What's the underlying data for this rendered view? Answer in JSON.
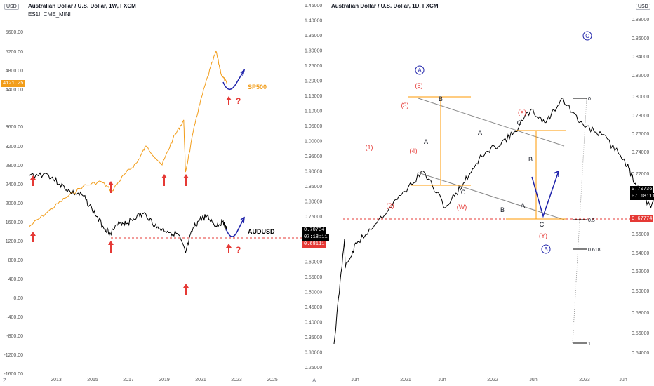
{
  "colors": {
    "price": "#000000",
    "sp500": "#f29d1a",
    "red": "#e53935",
    "blue": "#1e22aa",
    "orange_box": "#ff9800",
    "channel": "#888888",
    "axis_text": "#555555"
  },
  "left_chart": {
    "title": "Australian Dollar / U.S. Dollar, 1W, FXCM",
    "overlay_symbol": "ES1!, CME_MINI",
    "currency": "USD",
    "corner_label": "Z",
    "price_axis": [
      "5600.00",
      "5200.00",
      "4800.00",
      "4400.00",
      "3600.00",
      "3200.00",
      "2800.00",
      "2400.00",
      "2000.00",
      "1600.00",
      "1200.00",
      "800.00",
      "400.00",
      "0.00",
      "-400.00",
      "-800.00",
      "-1200.00",
      "-1600.00"
    ],
    "time_axis": [
      "2013",
      "2015",
      "2017",
      "2019",
      "2021",
      "2023",
      "2025"
    ],
    "sp500_last_value": "4121.25",
    "audusd_last_value": "0.70734",
    "audusd_countdown": "07:18:11",
    "support_value": "0.68111",
    "labels": {
      "sp500": "SP500",
      "audusd": "AUDUSD",
      "question": "?"
    }
  },
  "right_chart": {
    "title": "Australian Dollar / U.S. Dollar, 1D, FXCM",
    "currency": "USD",
    "corner_label": "A",
    "left_axis": [
      "1.45000",
      "1.40000",
      "1.35000",
      "1.30000",
      "1.25000",
      "1.20000",
      "1.15000",
      "1.10000",
      "1.05000",
      "1.00000",
      "0.95000",
      "0.90000",
      "0.85000",
      "0.80000",
      "0.75000",
      "0.70000",
      "0.65000",
      "0.60000",
      "0.55000",
      "0.50000",
      "0.45000",
      "0.40000",
      "0.35000",
      "0.30000",
      "0.25000"
    ],
    "right_axis": [
      "0.88000",
      "0.86000",
      "0.84000",
      "0.82000",
      "0.80000",
      "0.78000",
      "0.76000",
      "0.74000",
      "0.72000",
      "0.70000",
      "0.66000",
      "0.64000",
      "0.62000",
      "0.60000",
      "0.58000",
      "0.56000",
      "0.54000"
    ],
    "time_axis": [
      "Jun",
      "2021",
      "Jun",
      "2022",
      "Jun",
      "2023",
      "Jun"
    ],
    "last_price": "0.70736",
    "countdown": "07:18:11",
    "support_price": "0.67774",
    "fib_levels": [
      "0",
      "0.5",
      "0.618",
      "1"
    ],
    "wave_labels": {
      "A_circle": "A",
      "B_circle": "B",
      "C_circle": "C",
      "w1": "(1)",
      "w2": "(2)",
      "w3": "(3)",
      "w4": "(4)",
      "w5": "(5)",
      "W": "(W)",
      "X": "(X)",
      "Y": "(Y)",
      "a": "A",
      "b": "B",
      "c": "C"
    }
  },
  "chart_data": [
    {
      "type": "line",
      "title": "Australian Dollar / U.S. Dollar, 1W, FXCM",
      "series": [
        {
          "name": "AUDUSD"
        },
        {
          "name": "SP500"
        }
      ],
      "x_ticks": [
        "2013",
        "2015",
        "2017",
        "2019",
        "2021",
        "2023",
        "2025"
      ],
      "audusd_x": [
        2011.5,
        2012.5,
        2013.2,
        2013.8,
        2014.5,
        2015.0,
        2015.6,
        2016.0,
        2016.6,
        2017.0,
        2017.5,
        2018.0,
        2018.6,
        2019.2,
        2019.8,
        2020.2,
        2020.6,
        2021.0,
        2021.4,
        2021.9,
        2022.3,
        2022.5
      ],
      "audusd_y": [
        1.03,
        1.04,
        0.98,
        0.93,
        0.91,
        0.83,
        0.73,
        0.69,
        0.75,
        0.75,
        0.79,
        0.8,
        0.72,
        0.7,
        0.68,
        0.57,
        0.71,
        0.77,
        0.79,
        0.73,
        0.76,
        0.707
      ],
      "sp500_x": [
        2011.5,
        2012.5,
        2013.5,
        2014.5,
        2015.5,
        2016.1,
        2016.8,
        2017.5,
        2018.0,
        2018.9,
        2019.5,
        2020.1,
        2020.2,
        2020.8,
        2021.3,
        2021.9,
        2022.2,
        2022.5
      ],
      "sp500_y": [
        1100,
        1400,
        1700,
        1950,
        2050,
        1850,
        2200,
        2450,
        2800,
        2400,
        2950,
        3350,
        2250,
        3400,
        4100,
        4800,
        4300,
        4121
      ]
    },
    {
      "type": "line",
      "title": "Australian Dollar / U.S. Dollar, 1D, FXCM",
      "series": [
        {
          "name": "AUDUSD"
        }
      ],
      "x_ticks": [
        "Jun",
        "2021",
        "Jun",
        "2022",
        "Jun",
        "2023",
        "Jun"
      ],
      "x": [
        2020.2,
        2020.25,
        2020.3,
        2020.4,
        2020.5,
        2020.6,
        2020.7,
        2020.78,
        2020.85,
        2020.92,
        2021.0,
        2021.08,
        2021.15,
        2021.22,
        2021.3,
        2021.4,
        2021.5,
        2021.55,
        2021.62,
        2021.7,
        2021.78,
        2021.85,
        2021.92,
        2022.0,
        2022.05,
        2022.12,
        2022.2,
        2022.27,
        2022.32,
        2022.38,
        2022.42
      ],
      "y": [
        0.57,
        0.66,
        0.68,
        0.7,
        0.72,
        0.74,
        0.71,
        0.73,
        0.75,
        0.76,
        0.77,
        0.79,
        0.78,
        0.8,
        0.78,
        0.77,
        0.75,
        0.73,
        0.71,
        0.73,
        0.74,
        0.72,
        0.71,
        0.71,
        0.7,
        0.72,
        0.75,
        0.74,
        0.72,
        0.7,
        0.707
      ]
    }
  ]
}
